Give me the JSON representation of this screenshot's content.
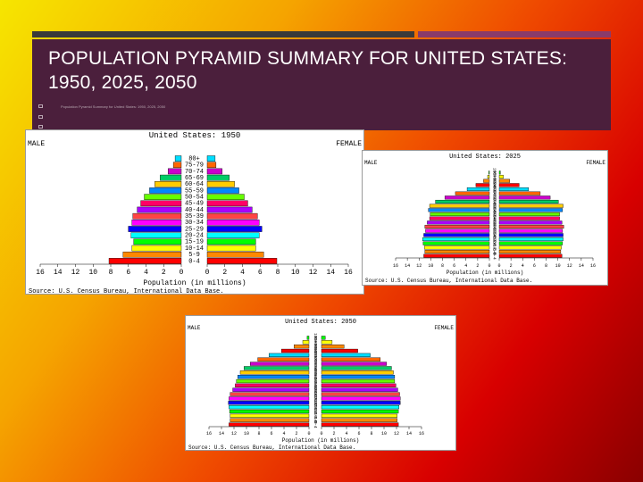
{
  "slide": {
    "title": "POPULATION PYRAMID SUMMARY FOR UNITED STATES: 1950, 2025, 2050",
    "note": "Population Pyramid Summary for United States: 1950, 2025, 2050"
  },
  "colors": [
    "#ff0000",
    "#ff8800",
    "#ffff00",
    "#00ff00",
    "#00ffff",
    "#0000ff",
    "#ff00ff",
    "#ff4444",
    "#aa00ff",
    "#ff0066",
    "#66ff00",
    "#0088ff",
    "#ffcc00",
    "#00cc66",
    "#cc00cc",
    "#ff6600",
    "#00ddff"
  ],
  "chart_data": [
    {
      "type": "bar",
      "title": "United States: 1950",
      "left_label": "MALE",
      "right_label": "FEMALE",
      "xlabel": "Population (in millions)",
      "source": "Source: U.S. Census Bureau, International Data Base.",
      "x_ticks": [
        "16",
        "14",
        "12",
        "10",
        "8",
        "6",
        "4",
        "2",
        "0",
        "0",
        "2",
        "4",
        "6",
        "8",
        "10",
        "12",
        "14",
        "16"
      ],
      "xlim": [
        0,
        16
      ],
      "categories": [
        "0-4",
        "5-9",
        "10-14",
        "15-19",
        "20-24",
        "25-29",
        "30-34",
        "35-39",
        "40-44",
        "45-49",
        "50-54",
        "55-59",
        "60-64",
        "65-69",
        "70-74",
        "75-79",
        "80+"
      ],
      "series": [
        {
          "name": "MALE",
          "values": [
            8.2,
            6.6,
            5.6,
            5.4,
            5.7,
            6.0,
            5.6,
            5.5,
            5.0,
            4.6,
            4.2,
            3.6,
            3.0,
            2.4,
            1.5,
            0.9,
            0.7
          ]
        },
        {
          "name": "FEMALE",
          "values": [
            7.9,
            6.4,
            5.5,
            5.5,
            5.9,
            6.2,
            5.9,
            5.7,
            5.1,
            4.6,
            4.2,
            3.6,
            3.1,
            2.5,
            1.7,
            1.0,
            0.9
          ]
        }
      ]
    },
    {
      "type": "bar",
      "title": "United States: 2025",
      "left_label": "MALE",
      "right_label": "FEMALE",
      "xlabel": "Population (in millions)",
      "source": "Source: U.S. Census Bureau, International Data Base.",
      "x_ticks": [
        "16",
        "14",
        "12",
        "10",
        "8",
        "6",
        "4",
        "2",
        "0",
        "0",
        "2",
        "4",
        "6",
        "8",
        "10",
        "12",
        "14",
        "16"
      ],
      "xlim": [
        0,
        16
      ],
      "categories": [
        "0-4",
        "5-9",
        "10-14",
        "15-19",
        "20-24",
        "25-29",
        "30-34",
        "35-39",
        "40-44",
        "45-49",
        "50-54",
        "55-59",
        "60-64",
        "65-69",
        "70-74",
        "75-79",
        "80-84",
        "85-89",
        "90-94",
        "95-99",
        "100+"
      ],
      "series": [
        {
          "name": "MALE",
          "values": [
            11.2,
            11.0,
            11.1,
            11.3,
            11.4,
            11.2,
            10.9,
            11.0,
            10.6,
            10.2,
            10.1,
            10.4,
            10.2,
            9.2,
            7.6,
            5.8,
            3.8,
            2.3,
            1.0,
            0.3,
            0.1
          ]
        },
        {
          "name": "FEMALE",
          "values": [
            10.7,
            10.5,
            10.6,
            10.8,
            10.9,
            10.9,
            10.8,
            11.0,
            10.7,
            10.3,
            10.3,
            10.8,
            10.9,
            10.1,
            8.7,
            7.0,
            5.0,
            3.4,
            1.8,
            0.7,
            0.2
          ]
        }
      ]
    },
    {
      "type": "bar",
      "title": "United States: 2050",
      "left_label": "MALE",
      "right_label": "FEMALE",
      "xlabel": "Population (in millions)",
      "source": "Source: U.S. Census Bureau, International Data Base.",
      "x_ticks": [
        "16",
        "14",
        "12",
        "10",
        "8",
        "6",
        "4",
        "2",
        "0",
        "0",
        "2",
        "4",
        "6",
        "8",
        "10",
        "12",
        "14",
        "16"
      ],
      "xlim": [
        0,
        16
      ],
      "categories": [
        "0-4",
        "5-9",
        "10-14",
        "15-19",
        "20-24",
        "25-29",
        "30-34",
        "35-39",
        "40-44",
        "45-49",
        "50-54",
        "55-59",
        "60-64",
        "65-69",
        "70-74",
        "75-79",
        "80-84",
        "85-89",
        "90-94",
        "95-99",
        "100+"
      ],
      "series": [
        {
          "name": "MALE",
          "values": [
            12.8,
            12.6,
            12.6,
            12.7,
            12.8,
            12.9,
            12.8,
            12.6,
            12.2,
            11.8,
            11.6,
            11.4,
            11.0,
            10.4,
            9.4,
            8.2,
            6.4,
            4.4,
            2.4,
            1.0,
            0.3
          ]
        },
        {
          "name": "FEMALE",
          "values": [
            12.3,
            12.1,
            12.1,
            12.3,
            12.4,
            12.6,
            12.6,
            12.5,
            12.2,
            11.9,
            11.7,
            11.7,
            11.5,
            11.2,
            10.4,
            9.4,
            7.8,
            5.8,
            3.6,
            1.7,
            0.6
          ]
        }
      ]
    }
  ]
}
